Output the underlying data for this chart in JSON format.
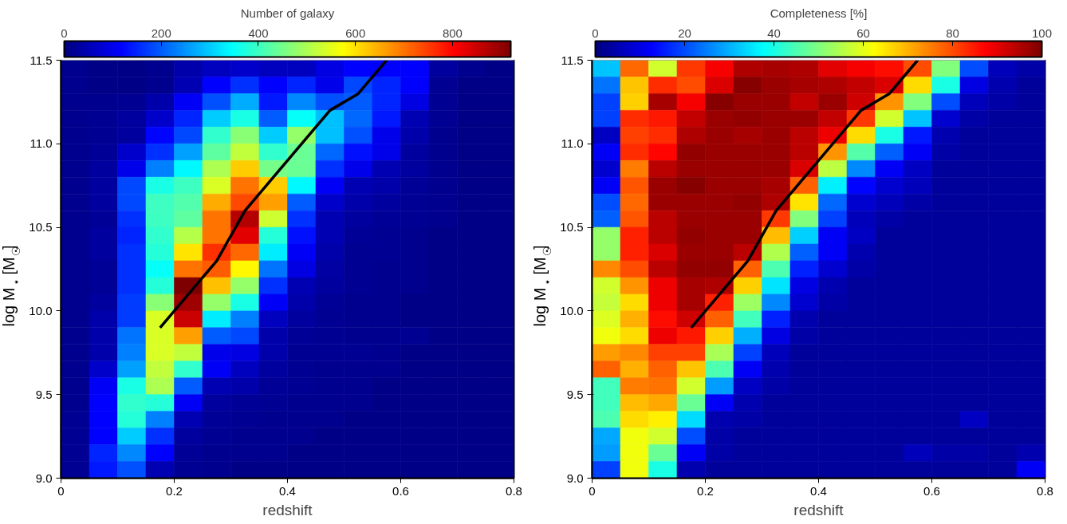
{
  "chart_data": [
    {
      "type": "heatmap",
      "xlabel": "redshift",
      "ylabel": "log M$_{⋆}$ [M$_{☉}$]",
      "clabel": "Number of galaxy",
      "x": [
        0.025,
        0.075,
        0.125,
        0.175,
        0.225,
        0.275,
        0.325,
        0.375,
        0.425,
        0.475,
        0.525,
        0.575,
        0.625,
        0.675,
        0.725,
        0.775
      ],
      "y": [
        11.45,
        11.35,
        11.25,
        11.15,
        11.05,
        10.95,
        10.85,
        10.75,
        10.65,
        10.55,
        10.45,
        10.35,
        10.25,
        10.15,
        10.05,
        9.95,
        9.85,
        9.75,
        9.65,
        9.55,
        9.45,
        9.35,
        9.25,
        9.15,
        9.05
      ],
      "xlim": [
        0,
        0.8
      ],
      "xticks": [
        0,
        0.2,
        0.4,
        0.6,
        0.8
      ],
      "ylim": [
        9,
        11.5
      ],
      "yticks": [
        {
          "value": 9,
          "label": "9.0"
        },
        {
          "value": 9.5,
          "label": "9.5"
        },
        {
          "value": 10,
          "label": "10.0"
        },
        {
          "value": 10.5,
          "label": "10.5"
        },
        {
          "value": 11,
          "label": "11.0"
        },
        {
          "value": 11.5,
          "label": "11.5"
        }
      ],
      "clim": [
        0,
        920
      ],
      "cticks": [
        0,
        200,
        400,
        600,
        800
      ],
      "cells": [
        [
          15,
          10,
          10,
          15,
          40,
          60,
          70,
          60,
          60,
          90,
          115,
          115,
          115,
          30,
          15,
          10
        ],
        [
          15,
          10,
          10,
          15,
          50,
          115,
          160,
          115,
          150,
          100,
          180,
          150,
          115,
          20,
          10,
          10
        ],
        [
          15,
          15,
          20,
          40,
          110,
          190,
          270,
          140,
          240,
          190,
          200,
          150,
          90,
          20,
          10,
          10
        ],
        [
          15,
          20,
          30,
          70,
          150,
          300,
          370,
          200,
          350,
          290,
          210,
          140,
          50,
          20,
          10,
          10
        ],
        [
          15,
          20,
          30,
          120,
          180,
          390,
          470,
          300,
          480,
          290,
          190,
          100,
          40,
          15,
          10,
          10
        ],
        [
          15,
          25,
          70,
          160,
          260,
          430,
          520,
          390,
          440,
          210,
          130,
          100,
          30,
          15,
          10,
          10
        ],
        [
          15,
          30,
          100,
          230,
          340,
          500,
          620,
          450,
          440,
          160,
          100,
          50,
          30,
          15,
          10,
          10
        ],
        [
          15,
          30,
          180,
          370,
          400,
          540,
          700,
          620,
          340,
          110,
          50,
          40,
          25,
          15,
          10,
          10
        ],
        [
          15,
          30,
          180,
          400,
          420,
          650,
          740,
          660,
          200,
          70,
          40,
          30,
          20,
          15,
          10,
          10
        ],
        [
          15,
          25,
          160,
          400,
          430,
          700,
          870,
          530,
          160,
          50,
          30,
          25,
          20,
          15,
          10,
          10
        ],
        [
          15,
          30,
          150,
          390,
          510,
          700,
          830,
          380,
          130,
          50,
          25,
          20,
          15,
          10,
          10,
          10
        ],
        [
          15,
          30,
          160,
          380,
          600,
          760,
          710,
          330,
          110,
          40,
          20,
          20,
          15,
          10,
          10,
          10
        ],
        [
          15,
          25,
          160,
          350,
          700,
          720,
          580,
          220,
          90,
          35,
          20,
          15,
          15,
          10,
          10,
          10
        ],
        [
          15,
          25,
          160,
          380,
          920,
          630,
          480,
          160,
          50,
          30,
          20,
          15,
          15,
          10,
          10,
          10
        ],
        [
          15,
          30,
          170,
          470,
          890,
          480,
          370,
          110,
          40,
          25,
          15,
          15,
          10,
          10,
          10,
          10
        ],
        [
          15,
          40,
          170,
          540,
          850,
          330,
          230,
          60,
          30,
          20,
          15,
          15,
          10,
          10,
          10,
          10
        ],
        [
          15,
          40,
          220,
          540,
          660,
          200,
          180,
          40,
          25,
          20,
          15,
          15,
          20,
          10,
          10,
          10
        ],
        [
          15,
          40,
          230,
          540,
          520,
          100,
          90,
          40,
          20,
          20,
          20,
          15,
          10,
          10,
          10,
          10
        ],
        [
          15,
          70,
          260,
          520,
          390,
          110,
          60,
          30,
          20,
          15,
          15,
          15,
          10,
          10,
          10,
          10
        ],
        [
          15,
          110,
          370,
          500,
          200,
          50,
          40,
          25,
          20,
          15,
          15,
          10,
          10,
          10,
          10,
          10
        ],
        [
          15,
          115,
          390,
          380,
          110,
          30,
          25,
          20,
          15,
          15,
          15,
          10,
          10,
          10,
          10,
          10
        ],
        [
          20,
          115,
          380,
          230,
          50,
          25,
          20,
          15,
          15,
          15,
          10,
          10,
          10,
          10,
          10,
          10
        ],
        [
          20,
          115,
          300,
          160,
          30,
          20,
          15,
          15,
          15,
          10,
          10,
          10,
          10,
          10,
          10,
          10
        ],
        [
          20,
          150,
          240,
          115,
          25,
          15,
          15,
          15,
          10,
          10,
          10,
          10,
          10,
          10,
          10,
          10
        ],
        [
          20,
          140,
          190,
          50,
          20,
          15,
          10,
          10,
          10,
          10,
          10,
          10,
          10,
          10,
          10,
          10
        ]
      ],
      "series": [
        {
          "type": "line",
          "color": "#000000",
          "x": [
            0.175,
            0.275,
            0.325,
            0.475,
            0.525,
            0.575
          ],
          "values": [
            9.9,
            10.3,
            10.6,
            11.2,
            11.3,
            11.5
          ]
        }
      ]
    },
    {
      "type": "heatmap",
      "xlabel": "redshift",
      "ylabel": "log M$_{⋆}$ [M$_{☉}$]",
      "clabel": "Completeness [%]",
      "x": [
        0.025,
        0.075,
        0.125,
        0.175,
        0.225,
        0.275,
        0.325,
        0.375,
        0.425,
        0.475,
        0.525,
        0.575,
        0.625,
        0.675,
        0.725,
        0.775
      ],
      "y": [
        11.45,
        11.35,
        11.25,
        11.15,
        11.05,
        10.95,
        10.85,
        10.75,
        10.65,
        10.55,
        10.45,
        10.35,
        10.25,
        10.15,
        10.05,
        9.95,
        9.85,
        9.75,
        9.65,
        9.55,
        9.45,
        9.35,
        9.25,
        9.15,
        9.05
      ],
      "xlim": [
        0,
        0.8
      ],
      "xticks": [
        0,
        0.2,
        0.4,
        0.6,
        0.8
      ],
      "ylim": [
        9,
        11.5
      ],
      "yticks": [
        {
          "value": 9,
          "label": "9.0"
        },
        {
          "value": 9.5,
          "label": "9.5"
        },
        {
          "value": 10,
          "label": "10.0"
        },
        {
          "value": 10.5,
          "label": "10.5"
        },
        {
          "value": 11,
          "label": "11.0"
        },
        {
          "value": 11.5,
          "label": "11.5"
        }
      ],
      "clim": [
        0,
        100
      ],
      "cticks": [
        0,
        20,
        40,
        60,
        80,
        100
      ],
      "cells": [
        [
          32,
          77,
          58,
          82,
          88,
          95,
          96,
          95,
          90,
          88,
          86,
          80,
          50,
          20,
          6,
          4
        ],
        [
          24,
          68,
          83,
          80,
          91,
          99,
          97,
          96,
          95,
          93,
          91,
          66,
          40,
          10,
          5,
          3
        ],
        [
          19,
          67,
          96,
          88,
          99,
          97,
          97,
          93,
          97,
          92,
          73,
          50,
          20,
          6,
          4,
          3
        ],
        [
          19,
          83,
          85,
          93,
          97,
          98,
          97,
          97,
          93,
          82,
          58,
          32,
          8,
          4,
          3,
          3
        ],
        [
          7,
          81,
          83,
          95,
          97,
          96,
          97,
          94,
          89,
          66,
          40,
          15,
          5,
          3,
          3,
          3
        ],
        [
          12,
          83,
          87,
          98,
          97,
          97,
          97,
          94,
          73,
          46,
          22,
          12,
          4,
          3,
          3,
          3
        ],
        [
          8,
          75,
          94,
          97,
          97,
          97,
          97,
          91,
          56,
          26,
          12,
          7,
          3,
          3,
          3,
          3
        ],
        [
          12,
          79,
          97,
          99,
          97,
          97,
          96,
          78,
          36,
          13,
          8,
          6,
          3,
          3,
          3,
          3
        ],
        [
          20,
          77,
          97,
          97,
          97,
          98,
          95,
          65,
          23,
          8,
          6,
          4,
          3,
          3,
          3,
          3
        ],
        [
          22,
          79,
          94,
          97,
          97,
          97,
          82,
          50,
          19,
          6,
          4,
          3,
          3,
          3,
          3,
          3
        ],
        [
          52,
          84,
          94,
          98,
          97,
          97,
          69,
          33,
          12,
          7,
          3,
          3,
          3,
          3,
          3,
          3
        ],
        [
          52,
          84,
          91,
          97,
          97,
          94,
          55,
          22,
          12,
          5,
          3,
          3,
          3,
          3,
          3,
          3
        ],
        [
          74,
          80,
          94,
          98,
          98,
          78,
          45,
          16,
          8,
          4,
          3,
          3,
          3,
          3,
          3,
          3
        ],
        [
          58,
          73,
          89,
          96,
          95,
          67,
          35,
          10,
          5,
          3,
          3,
          3,
          3,
          3,
          3,
          3
        ],
        [
          57,
          66,
          89,
          96,
          84,
          53,
          26,
          8,
          4,
          3,
          3,
          3,
          3,
          3,
          3,
          3
        ],
        [
          59,
          70,
          86,
          92,
          78,
          44,
          16,
          5,
          3,
          3,
          3,
          3,
          3,
          3,
          3,
          3
        ],
        [
          61,
          66,
          89,
          85,
          67,
          30,
          10,
          4,
          3,
          3,
          3,
          3,
          3,
          3,
          3,
          3
        ],
        [
          72,
          74,
          81,
          81,
          54,
          19,
          6,
          3,
          3,
          3,
          3,
          3,
          3,
          3,
          3,
          3
        ],
        [
          78,
          70,
          78,
          68,
          45,
          12,
          5,
          3,
          3,
          3,
          3,
          3,
          3,
          3,
          3,
          3
        ],
        [
          44,
          75,
          76,
          58,
          28,
          7,
          4,
          3,
          3,
          3,
          3,
          3,
          3,
          3,
          3,
          3
        ],
        [
          44,
          69,
          71,
          48,
          12,
          5,
          3,
          3,
          3,
          3,
          3,
          3,
          3,
          3,
          3,
          3
        ],
        [
          45,
          66,
          64,
          34,
          5,
          4,
          3,
          3,
          3,
          3,
          3,
          3,
          3,
          7,
          3,
          3
        ],
        [
          29,
          61,
          58,
          20,
          4,
          3,
          3,
          3,
          3,
          3,
          3,
          3,
          3,
          3,
          3,
          3
        ],
        [
          28,
          61,
          48,
          12,
          4,
          3,
          3,
          3,
          3,
          3,
          3,
          6,
          4,
          4,
          3,
          5
        ],
        [
          19,
          61,
          40,
          5,
          3,
          3,
          3,
          3,
          3,
          3,
          3,
          3,
          3,
          3,
          3,
          12
        ]
      ],
      "series": [
        {
          "type": "line",
          "color": "#000000",
          "x": [
            0.175,
            0.275,
            0.325,
            0.475,
            0.525,
            0.575
          ],
          "values": [
            9.9,
            10.3,
            10.6,
            11.2,
            11.3,
            11.5
          ]
        }
      ]
    }
  ]
}
